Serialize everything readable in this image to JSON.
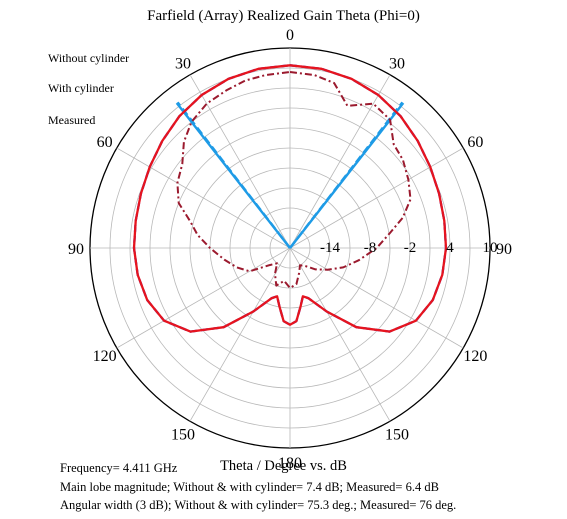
{
  "chart_data": {
    "type": "polar-line",
    "title": "Farfield (Array) Realized Gain Theta (Phi=0)",
    "axis_title": "Theta / Degree vs. dB",
    "angle_ticks": [
      {
        "angle": 0,
        "label": "0"
      },
      {
        "angle": 30,
        "label": "30"
      },
      {
        "angle": -30,
        "label": "30"
      },
      {
        "angle": 60,
        "label": "60"
      },
      {
        "angle": -60,
        "label": "60"
      },
      {
        "angle": 90,
        "label": "90"
      },
      {
        "angle": -90,
        "label": "90"
      },
      {
        "angle": 120,
        "label": "120"
      },
      {
        "angle": -120,
        "label": "120"
      },
      {
        "angle": 150,
        "label": "150"
      },
      {
        "angle": -150,
        "label": "150"
      },
      {
        "angle": 180,
        "label": "180"
      }
    ],
    "radial_ticks": [
      {
        "value": -14,
        "label": "-14"
      },
      {
        "value": -8,
        "label": "-8"
      },
      {
        "value": -2,
        "label": "-2"
      },
      {
        "value": 4,
        "label": "4"
      },
      {
        "value": 10,
        "label": "10"
      }
    ],
    "rlim": [
      -20,
      10
    ],
    "beamwidth_lines": [
      {
        "angles": [
          -37.65,
          37.65
        ],
        "color": "#1e9be6",
        "style": "dashed"
      },
      {
        "angles": [
          -38,
          38
        ],
        "color": "#1e9be6",
        "style": "solid"
      }
    ],
    "series": [
      {
        "name": "Without cylinder",
        "color": "#1a1adb",
        "style": "dashed",
        "theta": [
          0,
          10,
          20,
          30,
          40,
          50,
          60,
          70,
          80,
          90,
          100,
          110,
          120,
          130,
          140,
          150,
          160,
          165,
          170,
          175,
          180,
          -175,
          -170,
          -165,
          -160,
          -150,
          -140,
          -130,
          -120,
          -110,
          -100,
          -90,
          -80,
          -70,
          -60,
          -50,
          -40,
          -30,
          -20,
          -10,
          0
        ],
        "gain": [
          7.4,
          7.3,
          7.0,
          6.5,
          5.8,
          5.0,
          4.3,
          3.8,
          3.5,
          3.4,
          3.2,
          2.8,
          1.8,
          -0.5,
          -4.5,
          -9.0,
          -12.0,
          -12.5,
          -11.0,
          -9.0,
          -8.5,
          -9.0,
          -11.0,
          -12.5,
          -12.0,
          -9.0,
          -4.5,
          -0.5,
          1.8,
          2.8,
          3.2,
          3.4,
          3.5,
          3.8,
          4.3,
          5.0,
          5.8,
          6.5,
          7.0,
          7.3,
          7.4
        ]
      },
      {
        "name": "With cylinder",
        "color": "#e6141e",
        "style": "solid",
        "theta": [
          0,
          10,
          20,
          30,
          40,
          50,
          60,
          70,
          80,
          90,
          100,
          110,
          120,
          130,
          140,
          150,
          160,
          165,
          170,
          175,
          180,
          -175,
          -170,
          -165,
          -160,
          -150,
          -140,
          -130,
          -120,
          -110,
          -100,
          -90,
          -80,
          -70,
          -60,
          -50,
          -40,
          -30,
          -20,
          -10,
          0
        ],
        "gain": [
          7.4,
          7.3,
          7.0,
          6.5,
          5.8,
          5.0,
          4.3,
          3.8,
          3.5,
          3.4,
          3.2,
          2.8,
          1.8,
          -0.5,
          -4.5,
          -9.0,
          -12.0,
          -12.5,
          -11.0,
          -9.0,
          -8.5,
          -9.0,
          -11.0,
          -12.5,
          -12.0,
          -9.0,
          -4.5,
          -0.5,
          1.8,
          2.8,
          3.2,
          3.4,
          3.5,
          3.8,
          4.3,
          5.0,
          5.8,
          6.5,
          7.0,
          7.3,
          7.4
        ]
      },
      {
        "name": "Measured",
        "color": "#9b1a2e",
        "style": "dashdot",
        "theta": [
          0,
          8,
          15,
          22,
          30,
          38,
          45,
          52,
          60,
          68,
          75,
          82,
          90,
          100,
          110,
          120,
          130,
          140,
          150,
          160,
          170,
          180,
          -170,
          -160,
          -150,
          -140,
          -130,
          -120,
          -110,
          -100,
          -90,
          -82,
          -75,
          -68,
          -60,
          -52,
          -45,
          -38,
          -30,
          -22,
          -15,
          -8,
          0
        ],
        "gain": [
          6.4,
          6.2,
          5.6,
          3.0,
          5.0,
          4.4,
          2.0,
          1.5,
          0.5,
          -0.5,
          -2.5,
          -5.0,
          -7.0,
          -9.5,
          -11.5,
          -13.5,
          -15.0,
          -16.5,
          -17.0,
          -16.0,
          -14.5,
          -14.0,
          -15.0,
          -14.0,
          -15.5,
          -17.0,
          -16.0,
          -13.0,
          -11.5,
          -10.0,
          -8.0,
          -6.0,
          -4.5,
          -2.0,
          -0.5,
          0.5,
          2.5,
          4.0,
          5.0,
          5.5,
          6.0,
          6.2,
          6.4
        ]
      }
    ],
    "legend": {
      "position": "top-left"
    },
    "grid": true
  },
  "footer": {
    "frequency": "Frequency= 4.411 GHz",
    "main_lobe": "Main lobe magnitude; Without & with cylinder= 7.4 dB; Measured= 6.4 dB",
    "angular_width": "Angular width (3 dB); Without & with cylinder= 75.3 deg.; Measured= 76 deg."
  }
}
